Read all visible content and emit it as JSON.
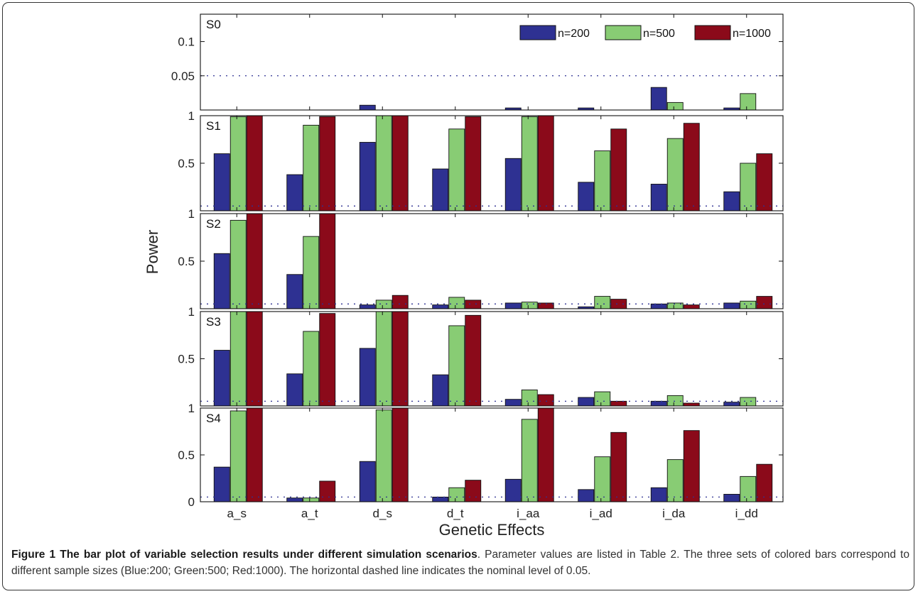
{
  "chart_data": {
    "type": "bar",
    "categories": [
      "a_s",
      "a_t",
      "d_s",
      "d_t",
      "i_aa",
      "i_ad",
      "i_da",
      "i_dd"
    ],
    "xlabel": "Genetic Effects",
    "ylabel": "Power",
    "nominal_level": 0.05,
    "grid": false,
    "legend_placement": "top-right",
    "legend": [
      {
        "label": "n=200",
        "color": "#2e3192"
      },
      {
        "label": "n=500",
        "color": "#88cc74"
      },
      {
        "label": "n=1000",
        "color": "#8b0a1a"
      }
    ],
    "panels": [
      {
        "name": "S0",
        "ylim": [
          0,
          0.14
        ],
        "yticks": [
          0.05,
          0.1
        ],
        "ytick_labels": [
          "0.05",
          "0.1"
        ],
        "series": [
          {
            "values": [
              0,
              0,
              0.007,
              0,
              0.003,
              0.003,
              0.033,
              0.003
            ]
          },
          {
            "values": [
              0,
              0,
              0,
              0,
              0,
              0,
              0.011,
              0.024
            ]
          },
          {
            "values": [
              0,
              0,
              0,
              0,
              0,
              0,
              0,
              0
            ]
          }
        ]
      },
      {
        "name": "S1",
        "ylim": [
          0,
          1
        ],
        "yticks": [
          0.5,
          1
        ],
        "ytick_labels": [
          "0.5",
          "1"
        ],
        "series": [
          {
            "values": [
              0.6,
              0.38,
              0.72,
              0.44,
              0.55,
              0.3,
              0.28,
              0.2
            ]
          },
          {
            "values": [
              0.99,
              0.9,
              1.0,
              0.86,
              0.99,
              0.63,
              0.76,
              0.5
            ]
          },
          {
            "values": [
              1.0,
              0.99,
              1.0,
              0.99,
              1.0,
              0.86,
              0.92,
              0.6
            ]
          }
        ]
      },
      {
        "name": "S2",
        "ylim": [
          0,
          1
        ],
        "yticks": [
          0.5,
          1
        ],
        "ytick_labels": [
          "0.5",
          "1"
        ],
        "series": [
          {
            "values": [
              0.58,
              0.36,
              0.04,
              0.04,
              0.06,
              0.02,
              0.05,
              0.06
            ]
          },
          {
            "values": [
              0.93,
              0.76,
              0.09,
              0.12,
              0.07,
              0.13,
              0.06,
              0.08
            ]
          },
          {
            "values": [
              1.0,
              1.0,
              0.14,
              0.09,
              0.06,
              0.1,
              0.04,
              0.13
            ]
          }
        ]
      },
      {
        "name": "S3",
        "ylim": [
          0,
          1
        ],
        "yticks": [
          0.5,
          1
        ],
        "ytick_labels": [
          "0.5",
          "1"
        ],
        "series": [
          {
            "values": [
              0.59,
              0.34,
              0.61,
              0.33,
              0.07,
              0.09,
              0.05,
              0.04
            ]
          },
          {
            "values": [
              1.0,
              0.79,
              1.0,
              0.85,
              0.17,
              0.15,
              0.11,
              0.09
            ]
          },
          {
            "values": [
              1.0,
              0.98,
              1.0,
              0.96,
              0.12,
              0.05,
              0.03,
              0.0
            ]
          }
        ]
      },
      {
        "name": "S4",
        "ylim": [
          0,
          1
        ],
        "yticks": [
          0,
          0.5,
          1
        ],
        "ytick_labels": [
          "0",
          "0.5",
          "1"
        ],
        "series": [
          {
            "values": [
              0.37,
              0.04,
              0.43,
              0.05,
              0.24,
              0.13,
              0.15,
              0.08
            ]
          },
          {
            "values": [
              0.97,
              0.04,
              0.98,
              0.15,
              0.88,
              0.48,
              0.45,
              0.27
            ]
          },
          {
            "values": [
              1.0,
              0.22,
              1.0,
              0.23,
              1.0,
              0.74,
              0.76,
              0.4
            ]
          }
        ]
      }
    ]
  },
  "caption": {
    "bold": "Figure 1 The bar plot of variable selection results under different simulation scenarios",
    "text": ". Parameter values are listed in Table 2. The three sets of colored bars correspond to different sample sizes (Blue:200; Green:500; Red:1000). The horizontal dashed line indicates the nominal level of 0.05."
  }
}
